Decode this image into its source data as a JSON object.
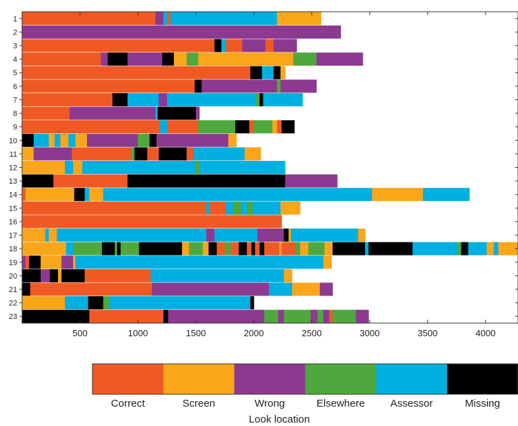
{
  "chart_data": {
    "type": "bar",
    "orientation": "horizontal-stacked-timeline",
    "xlim": [
      0,
      4280
    ],
    "xticks": [
      500,
      1000,
      1500,
      2000,
      2500,
      3000,
      3500,
      4000
    ],
    "categories": [
      "1",
      "2",
      "3",
      "4",
      "5",
      "6",
      "7",
      "8",
      "9",
      "10",
      "11",
      "12",
      "13",
      "14",
      "15",
      "16",
      "17",
      "18",
      "19",
      "20",
      "21",
      "22",
      "23"
    ],
    "legend": {
      "title": "Look location",
      "placement": "bottom",
      "items": [
        {
          "key": "C",
          "label": "Correct",
          "color": "#ef5a24"
        },
        {
          "key": "S",
          "label": "Screen",
          "color": "#faa61a"
        },
        {
          "key": "W",
          "label": "Wrong",
          "color": "#8b3a8f"
        },
        {
          "key": "E",
          "label": "Elsewhere",
          "color": "#4fa83d"
        },
        {
          "key": "A",
          "label": "Assessor",
          "color": "#00b0e0"
        },
        {
          "key": "M",
          "label": "Missing",
          "color": "#000000"
        }
      ]
    },
    "rows": [
      {
        "label": "1",
        "segments": [
          [
            "C",
            0,
            1150
          ],
          [
            "W",
            1150,
            1220
          ],
          [
            "A",
            1220,
            1250
          ],
          [
            "C",
            1250,
            1280
          ],
          [
            "A",
            1280,
            2200
          ],
          [
            "S",
            2200,
            2580
          ]
        ]
      },
      {
        "label": "2",
        "segments": [
          [
            "W",
            0,
            2750
          ]
        ]
      },
      {
        "label": "3",
        "segments": [
          [
            "C",
            0,
            1660
          ],
          [
            "M",
            1660,
            1720
          ],
          [
            "A",
            1720,
            1760
          ],
          [
            "C",
            1760,
            1900
          ],
          [
            "W",
            1900,
            2100
          ],
          [
            "C",
            2100,
            2170
          ],
          [
            "W",
            2170,
            2370
          ]
        ]
      },
      {
        "label": "4",
        "segments": [
          [
            "C",
            0,
            680
          ],
          [
            "W",
            680,
            740
          ],
          [
            "M",
            740,
            910
          ],
          [
            "W",
            910,
            1210
          ],
          [
            "M",
            1210,
            1310
          ],
          [
            "S",
            1310,
            1420
          ],
          [
            "E",
            1420,
            1520
          ],
          [
            "S",
            1520,
            2340
          ],
          [
            "E",
            2340,
            2540
          ],
          [
            "W",
            2540,
            2940
          ]
        ]
      },
      {
        "label": "5",
        "segments": [
          [
            "C",
            0,
            1970
          ],
          [
            "M",
            1970,
            2070
          ],
          [
            "A",
            2070,
            2170
          ],
          [
            "M",
            2170,
            2230
          ],
          [
            "S",
            2230,
            2270
          ]
        ]
      },
      {
        "label": "6",
        "segments": [
          [
            "C",
            0,
            1490
          ],
          [
            "M",
            1490,
            1550
          ],
          [
            "W",
            1550,
            2200
          ],
          [
            "E",
            2200,
            2230
          ],
          [
            "W",
            2230,
            2540
          ]
        ]
      },
      {
        "label": "7",
        "segments": [
          [
            "C",
            0,
            780
          ],
          [
            "M",
            780,
            910
          ],
          [
            "A",
            910,
            1180
          ],
          [
            "W",
            1180,
            1250
          ],
          [
            "A",
            1250,
            2020
          ],
          [
            "E",
            2020,
            2050
          ],
          [
            "M",
            2050,
            2080
          ],
          [
            "A",
            2080,
            2420
          ]
        ]
      },
      {
        "label": "8",
        "segments": [
          [
            "C",
            0,
            410
          ],
          [
            "W",
            410,
            500
          ],
          [
            "W",
            500,
            1150
          ],
          [
            "A",
            1150,
            1170
          ],
          [
            "M",
            1170,
            1500
          ],
          [
            "W",
            1500,
            1530
          ]
        ]
      },
      {
        "label": "9",
        "segments": [
          [
            "C",
            0,
            1190
          ],
          [
            "A",
            1190,
            1250
          ],
          [
            "C",
            1250,
            1520
          ],
          [
            "E",
            1520,
            1840
          ],
          [
            "M",
            1840,
            1960
          ],
          [
            "C",
            1960,
            2000
          ],
          [
            "E",
            2000,
            2160
          ],
          [
            "S",
            2160,
            2200
          ],
          [
            "C",
            2200,
            2240
          ],
          [
            "M",
            2240,
            2350
          ]
        ]
      },
      {
        "label": "10",
        "segments": [
          [
            "M",
            0,
            100
          ],
          [
            "A",
            100,
            230
          ],
          [
            "S",
            230,
            280
          ],
          [
            "A",
            280,
            330
          ],
          [
            "S",
            330,
            400
          ],
          [
            "A",
            400,
            460
          ],
          [
            "S",
            460,
            560
          ],
          [
            "W",
            560,
            1000
          ],
          [
            "E",
            1000,
            1100
          ],
          [
            "M",
            1100,
            1160
          ],
          [
            "W",
            1160,
            1780
          ],
          [
            "S",
            1780,
            1850
          ]
        ]
      },
      {
        "label": "11",
        "segments": [
          [
            "S",
            0,
            100
          ],
          [
            "W",
            100,
            430
          ],
          [
            "C",
            430,
            940
          ],
          [
            "E",
            940,
            970
          ],
          [
            "M",
            970,
            1080
          ],
          [
            "C",
            1080,
            1180
          ],
          [
            "M",
            1180,
            1420
          ],
          [
            "C",
            1420,
            1480
          ],
          [
            "A",
            1480,
            1920
          ],
          [
            "S",
            1920,
            2060
          ]
        ]
      },
      {
        "label": "12",
        "segments": [
          [
            "S",
            0,
            370
          ],
          [
            "A",
            370,
            440
          ],
          [
            "S",
            440,
            520
          ],
          [
            "A",
            520,
            1500
          ],
          [
            "E",
            1500,
            1530
          ],
          [
            "A",
            1530,
            2270
          ]
        ]
      },
      {
        "label": "13",
        "segments": [
          [
            "M",
            0,
            270
          ],
          [
            "C",
            270,
            910
          ],
          [
            "M",
            910,
            2270
          ],
          [
            "W",
            2270,
            2720
          ]
        ]
      },
      {
        "label": "14",
        "segments": [
          [
            "C",
            0,
            30
          ],
          [
            "S",
            30,
            450
          ],
          [
            "M",
            450,
            540
          ],
          [
            "A",
            540,
            580
          ],
          [
            "S",
            580,
            700
          ],
          [
            "A",
            700,
            3020
          ],
          [
            "S",
            3020,
            3460
          ],
          [
            "A",
            3460,
            3860
          ]
        ]
      },
      {
        "label": "15",
        "segments": [
          [
            "C",
            0,
            1590
          ],
          [
            "A",
            1590,
            1620
          ],
          [
            "C",
            1620,
            1760
          ],
          [
            "A",
            1760,
            1820
          ],
          [
            "E",
            1820,
            1890
          ],
          [
            "A",
            1890,
            1940
          ],
          [
            "E",
            1940,
            1990
          ],
          [
            "A",
            1990,
            2230
          ],
          [
            "S",
            2230,
            2400
          ]
        ]
      },
      {
        "label": "16",
        "segments": [
          [
            "C",
            0,
            2240
          ]
        ]
      },
      {
        "label": "17",
        "segments": [
          [
            "S",
            0,
            200
          ],
          [
            "A",
            200,
            230
          ],
          [
            "S",
            230,
            300
          ],
          [
            "A",
            300,
            1590
          ],
          [
            "W",
            1590,
            1660
          ],
          [
            "A",
            1660,
            2030
          ],
          [
            "W",
            2030,
            2260
          ],
          [
            "M",
            2260,
            2300
          ],
          [
            "S",
            2300,
            2320
          ],
          [
            "A",
            2320,
            2900
          ],
          [
            "S",
            2900,
            2960
          ]
        ]
      },
      {
        "label": "18",
        "segments": [
          [
            "S",
            0,
            380
          ],
          [
            "A",
            380,
            440
          ],
          [
            "E",
            440,
            690
          ],
          [
            "M",
            690,
            800
          ],
          [
            "E",
            800,
            820
          ],
          [
            "M",
            820,
            850
          ],
          [
            "E",
            850,
            1010
          ],
          [
            "M",
            1010,
            1380
          ],
          [
            "S",
            1380,
            1440
          ],
          [
            "E",
            1440,
            1560
          ],
          [
            "S",
            1560,
            1610
          ],
          [
            "M",
            1610,
            1680
          ],
          [
            "C",
            1680,
            1750
          ],
          [
            "E",
            1750,
            1800
          ],
          [
            "C",
            1800,
            1870
          ],
          [
            "M",
            1870,
            1940
          ],
          [
            "C",
            1940,
            1980
          ],
          [
            "M",
            1980,
            2010
          ],
          [
            "C",
            2010,
            2050
          ],
          [
            "M",
            2050,
            2090
          ],
          [
            "C",
            2090,
            2220
          ],
          [
            "S",
            2220,
            2240
          ],
          [
            "C",
            2240,
            2360
          ],
          [
            "E",
            2360,
            2400
          ],
          [
            "S",
            2400,
            2470
          ],
          [
            "E",
            2470,
            2610
          ],
          [
            "S",
            2610,
            2680
          ],
          [
            "M",
            2680,
            2960
          ],
          [
            "A",
            2960,
            2990
          ],
          [
            "M",
            2990,
            3370
          ],
          [
            "A",
            3370,
            3760
          ],
          [
            "E",
            3760,
            3790
          ],
          [
            "M",
            3790,
            3850
          ],
          [
            "A",
            3850,
            4010
          ],
          [
            "S",
            4010,
            4070
          ],
          [
            "A",
            4070,
            4110
          ],
          [
            "S",
            4110,
            4280
          ]
        ]
      },
      {
        "label": "19",
        "segments": [
          [
            "W",
            0,
            30
          ],
          [
            "C",
            30,
            60
          ],
          [
            "M",
            60,
            160
          ],
          [
            "S",
            160,
            340
          ],
          [
            "W",
            340,
            440
          ],
          [
            "S",
            440,
            460
          ],
          [
            "A",
            460,
            2600
          ],
          [
            "S",
            2600,
            2670
          ]
        ]
      },
      {
        "label": "20",
        "segments": [
          [
            "M",
            0,
            160
          ],
          [
            "W",
            160,
            240
          ],
          [
            "M",
            240,
            310
          ],
          [
            "S",
            310,
            340
          ],
          [
            "M",
            340,
            540
          ],
          [
            "C",
            540,
            1110
          ],
          [
            "A",
            1110,
            2260
          ],
          [
            "S",
            2260,
            2330
          ]
        ]
      },
      {
        "label": "21",
        "segments": [
          [
            "M",
            0,
            70
          ],
          [
            "C",
            70,
            1120
          ],
          [
            "W",
            1120,
            2130
          ],
          [
            "A",
            2130,
            2330
          ],
          [
            "S",
            2330,
            2570
          ],
          [
            "W",
            2570,
            2680
          ]
        ]
      },
      {
        "label": "22",
        "segments": [
          [
            "S",
            0,
            370
          ],
          [
            "A",
            370,
            570
          ],
          [
            "M",
            570,
            700
          ],
          [
            "E",
            700,
            750
          ],
          [
            "A",
            750,
            1970
          ],
          [
            "M",
            1970,
            2000
          ]
        ]
      },
      {
        "label": "23",
        "segments": [
          [
            "M",
            0,
            580
          ],
          [
            "C",
            580,
            1220
          ],
          [
            "M",
            1220,
            1260
          ],
          [
            "W",
            1260,
            2090
          ],
          [
            "E",
            2090,
            2210
          ],
          [
            "W",
            2210,
            2260
          ],
          [
            "E",
            2260,
            2490
          ],
          [
            "W",
            2490,
            2550
          ],
          [
            "E",
            2550,
            2600
          ],
          [
            "W",
            2600,
            2650
          ],
          [
            "C",
            2650,
            2680
          ],
          [
            "E",
            2680,
            2880
          ],
          [
            "W",
            2880,
            2990
          ]
        ]
      }
    ]
  }
}
